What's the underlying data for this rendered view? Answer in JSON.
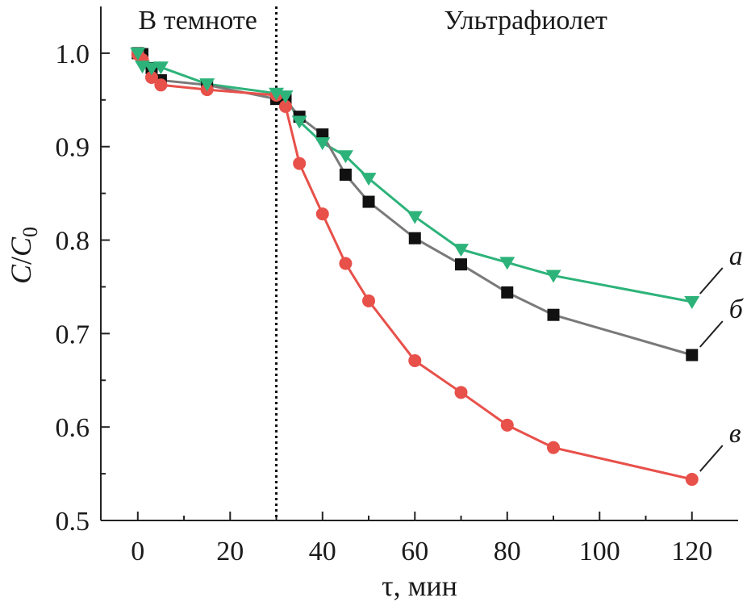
{
  "chart_data": {
    "type": "line",
    "title": "",
    "xlabel": "τ, мин",
    "ylabel": {
      "base": "C",
      "slash": "/",
      "sub_base": "C",
      "sub": "0"
    },
    "xlim": [
      -8,
      130
    ],
    "ylim": [
      0.5,
      1.05
    ],
    "xticks": [
      0,
      20,
      40,
      60,
      80,
      100,
      120
    ],
    "yticks": [
      0.5,
      0.6,
      0.7,
      0.8,
      0.9,
      1.0
    ],
    "ytick_labels": [
      "0.5",
      "0.6",
      "0.7",
      "0.8",
      "0.9",
      "1.0"
    ],
    "grid": false,
    "divider_x": 30,
    "regions": [
      {
        "label": "В темноте",
        "x_center": 13
      },
      {
        "label": "Ультрафиолет",
        "x_center": 84
      }
    ],
    "series": [
      {
        "name": "а",
        "marker": "triangle-down",
        "color": "#2db37a",
        "x": [
          0,
          1,
          3,
          5,
          15,
          30,
          32,
          35,
          40,
          45,
          50,
          60,
          70,
          80,
          90,
          120
        ],
        "y": [
          1.0,
          0.986,
          0.984,
          0.985,
          0.967,
          0.957,
          0.954,
          0.927,
          0.904,
          0.89,
          0.866,
          0.825,
          0.79,
          0.776,
          0.762,
          0.734
        ]
      },
      {
        "name": "б",
        "marker": "square",
        "color": "#7a7a7a",
        "x": [
          0,
          1,
          3,
          5,
          15,
          30,
          32,
          35,
          40,
          45,
          50,
          60,
          70,
          80,
          90,
          120
        ],
        "y": [
          1.0,
          0.999,
          0.984,
          0.971,
          0.966,
          0.951,
          0.95,
          0.932,
          0.913,
          0.87,
          0.841,
          0.802,
          0.774,
          0.744,
          0.72,
          0.677
        ]
      },
      {
        "name": "в",
        "marker": "circle",
        "color": "#e8504a",
        "x": [
          0,
          1,
          3,
          5,
          15,
          30,
          32,
          35,
          40,
          45,
          50,
          60,
          70,
          80,
          90,
          120
        ],
        "y": [
          0.999,
          0.993,
          0.974,
          0.966,
          0.961,
          0.955,
          0.943,
          0.882,
          0.828,
          0.775,
          0.735,
          0.671,
          0.637,
          0.602,
          0.578,
          0.544
        ]
      }
    ],
    "annotations": [
      {
        "text": "а",
        "series": "а"
      },
      {
        "text": "б",
        "series": "б"
      },
      {
        "text": "в",
        "series": "в"
      }
    ]
  }
}
